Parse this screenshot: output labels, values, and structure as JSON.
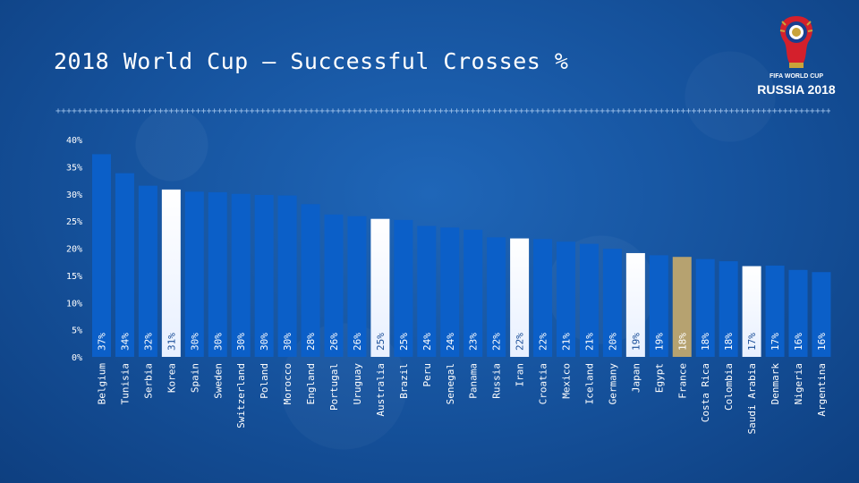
{
  "slide": {
    "title": "2018 World Cup – Successful Crosses %",
    "divider": "+++++++++++++++++++++++++++++++++++++++++++++++++++++++++++++++++++++++++++++++++++++++++++++++++++++++++++++++++++++++++++++++++++++++++++++++++"
  },
  "logo": {
    "line1": "FIFA WORLD CUP",
    "line2": "RUSSIA 2018",
    "icon": "world-cup-trophy-emblem-icon"
  },
  "chart_data": {
    "type": "bar",
    "title": "2018 World Cup – Successful Crosses %",
    "xlabel": "",
    "ylabel": "",
    "ylim": [
      0,
      40
    ],
    "yticks": [
      "0%",
      "5%",
      "10%",
      "15%",
      "20%",
      "25%",
      "30%",
      "35%",
      "40%"
    ],
    "grid": false,
    "legend": "none",
    "categories": [
      "Belgium",
      "Tunisia",
      "Serbia",
      "Korea",
      "Spain",
      "Sweden",
      "Switzerland",
      "Poland",
      "Morocco",
      "England",
      "Portugal",
      "Uruguay",
      "Australia",
      "Brazil",
      "Peru",
      "Senegal",
      "Panama",
      "Russia",
      "Iran",
      "Croatia",
      "Mexico",
      "Iceland",
      "Germany",
      "Japan",
      "Egypt",
      "France",
      "Costa Rica",
      "Colombia",
      "Saudi Arabia",
      "Denmark",
      "Nigeria",
      "Argentina"
    ],
    "values": [
      37.3,
      33.8,
      31.5,
      30.8,
      30.4,
      30.3,
      30.0,
      29.8,
      29.7,
      28.1,
      26.2,
      25.9,
      25.4,
      25.2,
      24.1,
      23.8,
      23.4,
      22.0,
      21.8,
      21.7,
      21.2,
      20.8,
      19.9,
      19.1,
      18.7,
      18.4,
      18.0,
      17.6,
      16.7,
      16.8,
      16.0,
      15.6
    ],
    "labels": [
      "37%",
      "34%",
      "32%",
      "31%",
      "30%",
      "30%",
      "30%",
      "30%",
      "30%",
      "28%",
      "26%",
      "26%",
      "25%",
      "25%",
      "24%",
      "24%",
      "23%",
      "22%",
      "22%",
      "22%",
      "21%",
      "21%",
      "20%",
      "19%",
      "19%",
      "18%",
      "18%",
      "18%",
      "17%",
      "17%",
      "16%",
      "16%"
    ],
    "highlight": {
      "Korea": "light",
      "Australia": "light",
      "Iran": "light",
      "Japan": "light",
      "Saudi Arabia": "light",
      "France": "gold"
    },
    "colors": {
      "bar": "#0b5fc8",
      "bar_light": "#e8f0ff",
      "bar_gold": "#b6a270",
      "label_on_dark": "#ffffff",
      "label_on_light": "#1b4f99",
      "axis_text": "#ffffff"
    }
  }
}
